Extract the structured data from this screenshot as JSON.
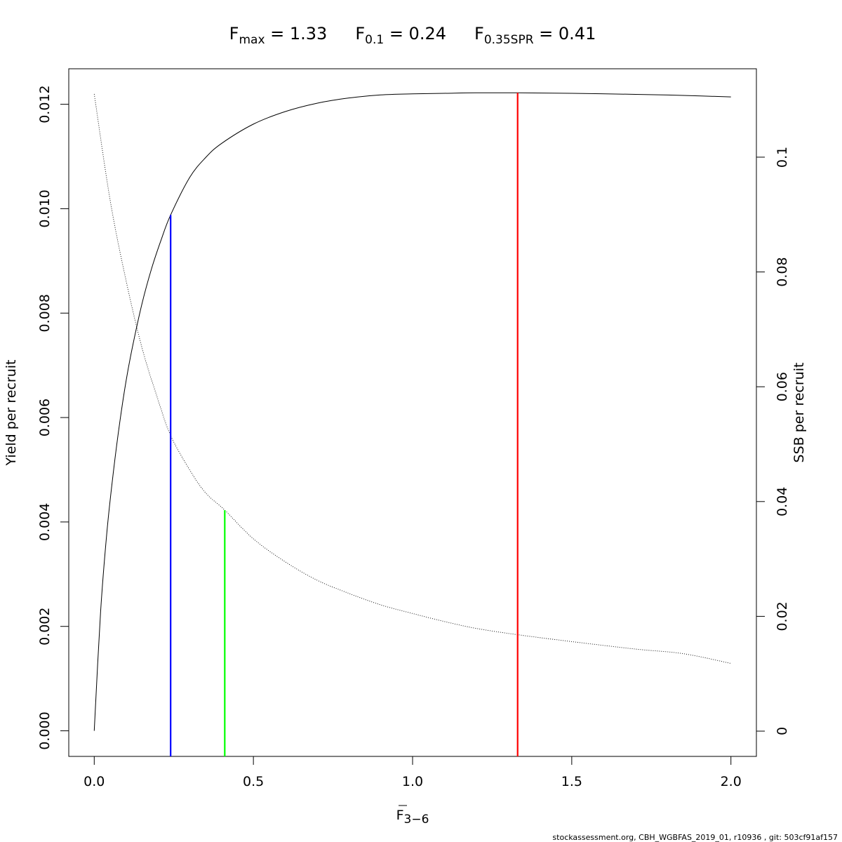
{
  "title": {
    "parts": [
      {
        "main": "F",
        "sub": "max",
        "rest": " = 1.33"
      },
      {
        "main": "F",
        "sub": "0.1",
        "rest": " = 0.24"
      },
      {
        "main": "F",
        "sub": "0.35SPR",
        "rest": " = 0.41"
      }
    ]
  },
  "xlabel": {
    "main": "F",
    "sub": "3−6"
  },
  "ylabel_left": "Yield per recruit",
  "ylabel_right": "SSB per recruit",
  "footer": "stockassessment.org, CBH_WGBFAS_2019_01, r10936 , git: 503cf91af157",
  "colors": {
    "fmax": "#ff0000",
    "f01": "#0000ff",
    "f035spr": "#00ff00",
    "curves": "#000000"
  },
  "chart_data": {
    "type": "line",
    "xlim": [
      -0.08,
      2.08
    ],
    "x_ticks": [
      "0.0",
      "0.5",
      "1.0",
      "1.5",
      "2.0"
    ],
    "y_left": {
      "lim": [
        -0.00049,
        0.01268
      ],
      "ticks": [
        "0.000",
        "0.002",
        "0.004",
        "0.006",
        "0.008",
        "0.010",
        "0.012"
      ]
    },
    "y_right": {
      "lim": [
        -0.0044,
        0.1154
      ],
      "ticks": [
        "0",
        "0.02",
        "0.04",
        "0.06",
        "0.08",
        "0.1"
      ]
    },
    "series": [
      {
        "axis": "left",
        "style": "solid",
        "x": [
          0,
          0.02,
          0.04,
          0.06,
          0.08,
          0.1,
          0.12,
          0.15,
          0.18,
          0.21,
          0.24,
          0.3,
          0.35,
          0.4,
          0.5,
          0.6,
          0.7,
          0.8,
          0.9,
          1.0,
          1.1,
          1.2,
          1.33,
          1.5,
          1.7,
          1.85,
          2.0
        ],
        "values": [
          0,
          0.00228,
          0.00382,
          0.00495,
          0.0059,
          0.0067,
          0.00735,
          0.00818,
          0.00885,
          0.0094,
          0.00988,
          0.0106,
          0.01098,
          0.01125,
          0.01162,
          0.01186,
          0.01202,
          0.01212,
          0.01218,
          0.0122,
          0.01221,
          0.01222,
          0.01222,
          0.01221,
          0.01219,
          0.01217,
          0.01214
        ]
      },
      {
        "axis": "right",
        "style": "dotted",
        "x": [
          0,
          0.05,
          0.1,
          0.15,
          0.2,
          0.24,
          0.3,
          0.35,
          0.41,
          0.5,
          0.6,
          0.7,
          0.8,
          0.9,
          1.0,
          1.1,
          1.2,
          1.33,
          1.5,
          1.7,
          1.85,
          2.0
        ],
        "values": [
          0.111,
          0.0925,
          0.0785,
          0.0668,
          0.0578,
          0.0515,
          0.0455,
          0.0415,
          0.0385,
          0.0335,
          0.0295,
          0.0263,
          0.024,
          0.022,
          0.0205,
          0.0191,
          0.0179,
          0.0168,
          0.0156,
          0.0143,
          0.0135,
          0.0118
        ]
      }
    ],
    "reference_lines": [
      {
        "name": "Fmax",
        "x": 1.33,
        "y_right_end": 0.01222,
        "axis": "left",
        "color": "#ff0000"
      },
      {
        "name": "F0.1",
        "x": 0.24,
        "y_right_end": 0.00988,
        "axis": "left",
        "color": "#0000ff"
      },
      {
        "name": "F0.35SPR",
        "x": 0.41,
        "y_right_end": 0.0385,
        "axis": "right",
        "color": "#00ff00"
      }
    ]
  }
}
